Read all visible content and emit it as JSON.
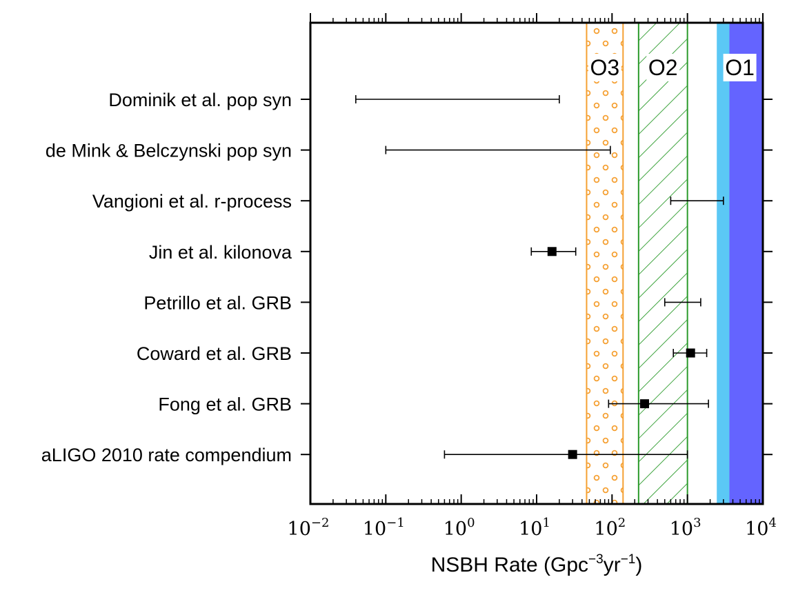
{
  "chart_data": {
    "type": "scatter",
    "xscale": "log",
    "xlim": [
      0.01,
      10000
    ],
    "x_ticks": [
      {
        "base": "10",
        "exp": "−2",
        "value": 0.01
      },
      {
        "base": "10",
        "exp": "−1",
        "value": 0.1
      },
      {
        "base": "10",
        "exp": "0",
        "value": 1
      },
      {
        "base": "10",
        "exp": "1",
        "value": 10
      },
      {
        "base": "10",
        "exp": "2",
        "value": 100
      },
      {
        "base": "10",
        "exp": "3",
        "value": 1000
      },
      {
        "base": "10",
        "exp": "4",
        "value": 10000
      }
    ],
    "xlabel": {
      "prefix": "NSBH Rate (Gpc",
      "sup1": "−3",
      "mid": "yr",
      "sup2": "−1",
      "suffix": ")"
    },
    "grid": false,
    "categories": [
      "Dominik et al. pop syn",
      "de Mink & Belczynski pop syn",
      "Vangioni et al. r-process",
      "Jin et al. kilonova",
      "Petrillo et al. GRB",
      "Coward et al. GRB",
      "Fong et al. GRB",
      "aLIGO 2010 rate compendium"
    ],
    "points": [
      {
        "low": 0.04,
        "high": 20,
        "value": null
      },
      {
        "low": 0.1,
        "high": 95,
        "value": null
      },
      {
        "low": 600,
        "high": 3000,
        "value": null
      },
      {
        "low": 8.5,
        "high": 33,
        "value": 16
      },
      {
        "low": 500,
        "high": 1500,
        "value": null
      },
      {
        "low": 650,
        "high": 1800,
        "value": 1100
      },
      {
        "low": 90,
        "high": 1900,
        "value": 270
      },
      {
        "low": 0.6,
        "high": 1000,
        "value": 30
      }
    ],
    "bands": [
      {
        "label": "O3",
        "low": 46,
        "high": 140,
        "edge_color": "#f5a032",
        "fill": "dots"
      },
      {
        "label": "O2",
        "low": 225,
        "high": 1000,
        "edge_color": "#2a9a2a",
        "fill": "hatch"
      },
      {
        "label": "O1",
        "low": 2450,
        "high": 10000,
        "light_color": "#5bc8f5",
        "dark_color": "#6464ff",
        "split": 3600,
        "fill": "solid"
      }
    ]
  }
}
